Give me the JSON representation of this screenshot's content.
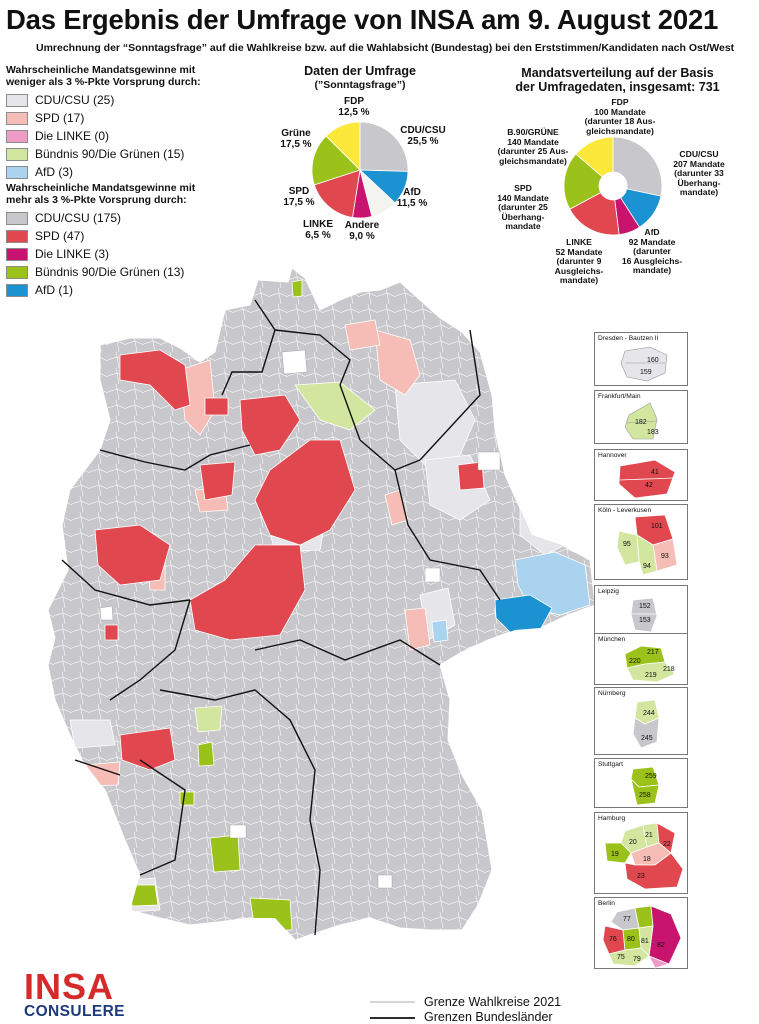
{
  "title": "Das Ergebnis der Umfrage von INSA am 9. August 2021",
  "subtitle": "Umrechnung der “Sonntagsfrage” auf die Wahlkreise bzw. auf die Wahlabsicht (Bundestag) bei den Erststimmen/Kandidaten nach Ost/West",
  "colors": {
    "cdu": "#c8c8cc",
    "cdu_light": "#e6e6ea",
    "spd": "#e0474f",
    "spd_light": "#f6bcb6",
    "linke": "#c8146e",
    "linke_light": "#ef9bc6",
    "gruene": "#9bc21a",
    "gruene_light": "#d3e6a0",
    "afd": "#1b92d1",
    "afd_light": "#a9d3ee",
    "fdp": "#fbe83a",
    "andere": "#f3f3ef"
  },
  "legend": {
    "weak_heading": "Wahrscheinliche Mandatsgewinne mit weniger als 3 %-Pkte Vorsprung durch:",
    "weak_items": [
      {
        "label": "CDU/CSU (25)",
        "color": "#e6e6ea"
      },
      {
        "label": "SPD (17)",
        "color": "#f6bcb6"
      },
      {
        "label": "Die LINKE (0)",
        "color": "#ef9bc6"
      },
      {
        "label": "Bündnis 90/Die Grünen (15)",
        "color": "#d3e6a0"
      },
      {
        "label": "AfD (3)",
        "color": "#a9d3ee"
      }
    ],
    "strong_heading": "Wahrscheinliche Mandatsgewinne mit mehr als 3 %-Pkte Vorsprung durch:",
    "strong_items": [
      {
        "label": "CDU/CSU (175)",
        "color": "#c8c8cc"
      },
      {
        "label": "SPD (47)",
        "color": "#e0474f"
      },
      {
        "label": "Die LINKE (3)",
        "color": "#c8146e"
      },
      {
        "label": "Bündnis 90/Die Grünen (13)",
        "color": "#9bc21a"
      },
      {
        "label": "AfD (1)",
        "color": "#1b92d1"
      }
    ]
  },
  "survey": {
    "title": "Daten der Umfrage",
    "subtitle": "(”Sonntagsfrage”)",
    "slices": [
      {
        "party": "CDU/CSU",
        "pct_label": "25,5 %",
        "value": 25.5,
        "color": "#c8c8cc"
      },
      {
        "party": "AfD",
        "pct_label": "11,5 %",
        "value": 11.5,
        "color": "#1b92d1"
      },
      {
        "party": "Andere",
        "pct_label": "9,0 %",
        "value": 9.0,
        "color": "#f3f3ef"
      },
      {
        "party": "LINKE",
        "pct_label": "6,5 %",
        "value": 6.5,
        "color": "#c8146e"
      },
      {
        "party": "SPD",
        "pct_label": "17,5 %",
        "value": 17.5,
        "color": "#e0474f"
      },
      {
        "party": "Grüne",
        "pct_label": "17,5 %",
        "value": 17.5,
        "color": "#9bc21a"
      },
      {
        "party": "FDP",
        "pct_label": "12,5 %",
        "value": 12.5,
        "color": "#fbe83a"
      }
    ]
  },
  "seats": {
    "title": "Mandatsverteilung auf der Basis",
    "title2": "der Umfragedaten, insgesamt: 731",
    "slices": [
      {
        "party": "CDU/CSU",
        "lines": [
          "CDU/CSU",
          "207 Mandate",
          "(darunter 33",
          "Überhang-",
          "mandate)"
        ],
        "value": 207,
        "color": "#c8c8cc"
      },
      {
        "party": "AfD",
        "lines": [
          "AfD",
          "92 Mandate",
          "(darunter",
          "16 Ausgleichs-",
          "mandate)"
        ],
        "value": 92,
        "color": "#1b92d1"
      },
      {
        "party": "LINKE",
        "lines": [
          "LINKE",
          "52 Mandate",
          "(darunter 9",
          "Ausgleichs-",
          "mandate)"
        ],
        "value": 52,
        "color": "#c8146e"
      },
      {
        "party": "SPD",
        "lines": [
          "SPD",
          "140 Mandate",
          "(darunter 25",
          "Überhang-",
          "mandate"
        ],
        "value": 140,
        "color": "#e0474f"
      },
      {
        "party": "B.90/GRÜNE",
        "lines": [
          "B.90/GRÜNE",
          "140 Mandate",
          "(darunter 25 Aus-",
          "gleichsmandate)"
        ],
        "value": 140,
        "color": "#9bc21a"
      },
      {
        "party": "FDP",
        "lines": [
          "FDP",
          "100 Mandate",
          "(darunter 18 Aus-",
          "gleichsmandate)"
        ],
        "value": 100,
        "color": "#fbe83a"
      }
    ]
  },
  "insets": [
    {
      "name": "Dresden - Bautzen II",
      "numbers": [
        "160",
        "159"
      ]
    },
    {
      "name": "Frankfurt/Main",
      "numbers": [
        "182",
        "183"
      ]
    },
    {
      "name": "Hannover",
      "numbers": [
        "41",
        "42"
      ]
    },
    {
      "name": "Köln - Leverkusen",
      "numbers": [
        "101",
        "95",
        "93",
        "94"
      ]
    },
    {
      "name": "Leipzig",
      "numbers": [
        "152",
        "153"
      ]
    },
    {
      "name": "München",
      "numbers": [
        "217",
        "220",
        "218",
        "219"
      ]
    },
    {
      "name": "Nürnberg",
      "numbers": [
        "244",
        "245"
      ]
    },
    {
      "name": "Stuttgart",
      "numbers": [
        "259",
        "258"
      ]
    },
    {
      "name": "Hamburg",
      "numbers": [
        "21",
        "20",
        "22",
        "19",
        "18",
        "23"
      ]
    },
    {
      "name": "Berlin",
      "numbers": [
        "77",
        "76",
        "80",
        "81",
        "82",
        "75",
        "79"
      ]
    }
  ],
  "footer": {
    "line1": "Grenze Wahlkreise 2021",
    "line2": "Grenzen Bundesländer",
    "logo_top": "INSA",
    "logo_bottom": "CONSULERE"
  }
}
